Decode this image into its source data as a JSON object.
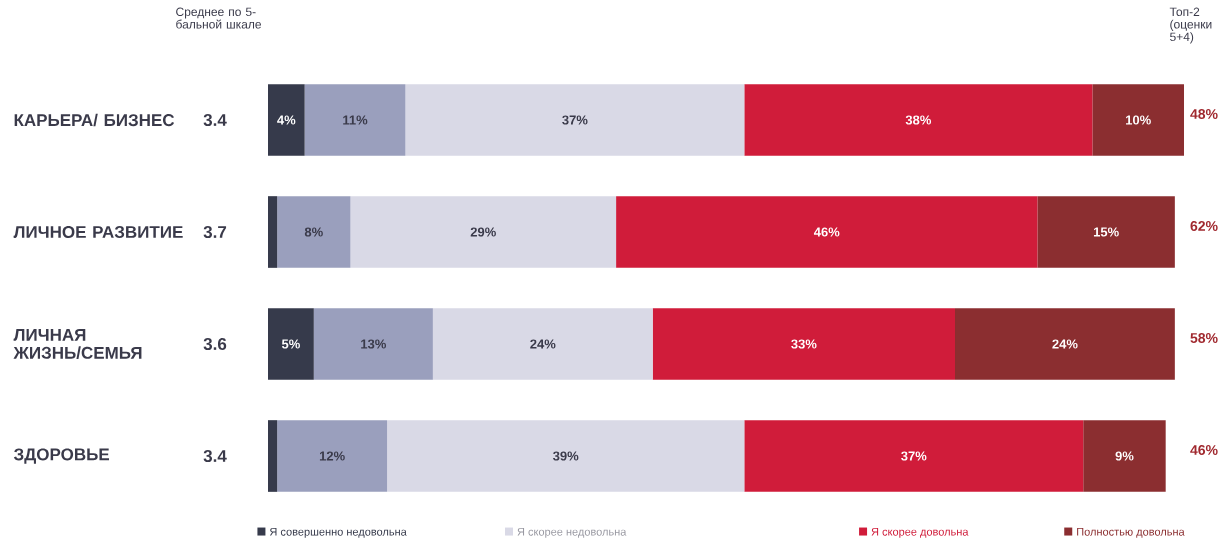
{
  "chart_data": {
    "type": "bar",
    "orientation": "horizontal",
    "stacked": true,
    "legend": "bottom",
    "tick_labels": "y",
    "xlim": [
      0,
      100
    ],
    "categories": [
      "КАРЬЕРА/ БИЗНЕС",
      "ЛИЧНОЕ РАЗВИТИЕ",
      "ЛИЧНАЯ ЖИЗНЬ/СЕМЬЯ",
      "ЗДОРОВЬЕ"
    ],
    "series": [
      {
        "name": "Я совершенно недовольна",
        "color": "#363a4b",
        "values": [
          4,
          1,
          5,
          1
        ],
        "value_labels": [
          "4%",
          null,
          "5%",
          null
        ]
      },
      {
        "color": "#9a9fbd",
        "values": [
          11,
          8,
          13,
          12
        ],
        "value_labels": [
          "11%",
          "8%",
          "13%",
          "12%"
        ]
      },
      {
        "name": "Я скорее недовольна",
        "color": "#d9d9e6",
        "values": [
          37,
          29,
          24,
          39
        ],
        "value_labels": [
          "37%",
          "29%",
          "24%",
          "39%"
        ]
      },
      {
        "name": "Я скорее довольна",
        "color": "#d01c3a",
        "values": [
          38,
          46,
          33,
          37
        ],
        "value_labels": [
          "38%",
          "46%",
          "33%",
          "37%"
        ]
      },
      {
        "name": "Полностью довольна",
        "color": "#8b2e30",
        "values": [
          10,
          15,
          24,
          9
        ],
        "value_labels": [
          "10%",
          "15%",
          "24%",
          "9%"
        ]
      }
    ],
    "annotations": [
      "Среднее по 5-бальной шкале",
      "3.4",
      "3.7",
      "3.6",
      "3.4",
      "Топ-2 (оценки 5+4)",
      "48%",
      "62%",
      "58%",
      "46%"
    ]
  }
}
